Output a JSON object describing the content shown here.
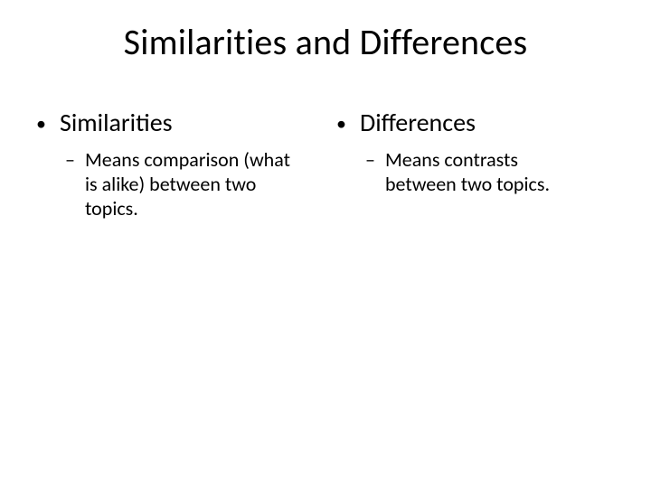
{
  "slide": {
    "title": "Similarities and Differences",
    "background_color": "#ffffff",
    "text_color": "#000000",
    "title_fontsize": 40,
    "columns": [
      {
        "heading": "Similarities",
        "heading_fontsize": 28,
        "sub": "Means comparison (what is alike) between two topics.",
        "sub_fontsize": 22
      },
      {
        "heading": "Differences",
        "heading_fontsize": 28,
        "sub": "Means contrasts between two topics.",
        "sub_fontsize": 22
      }
    ],
    "bullet_glyph": "•",
    "dash_glyph": "–"
  }
}
